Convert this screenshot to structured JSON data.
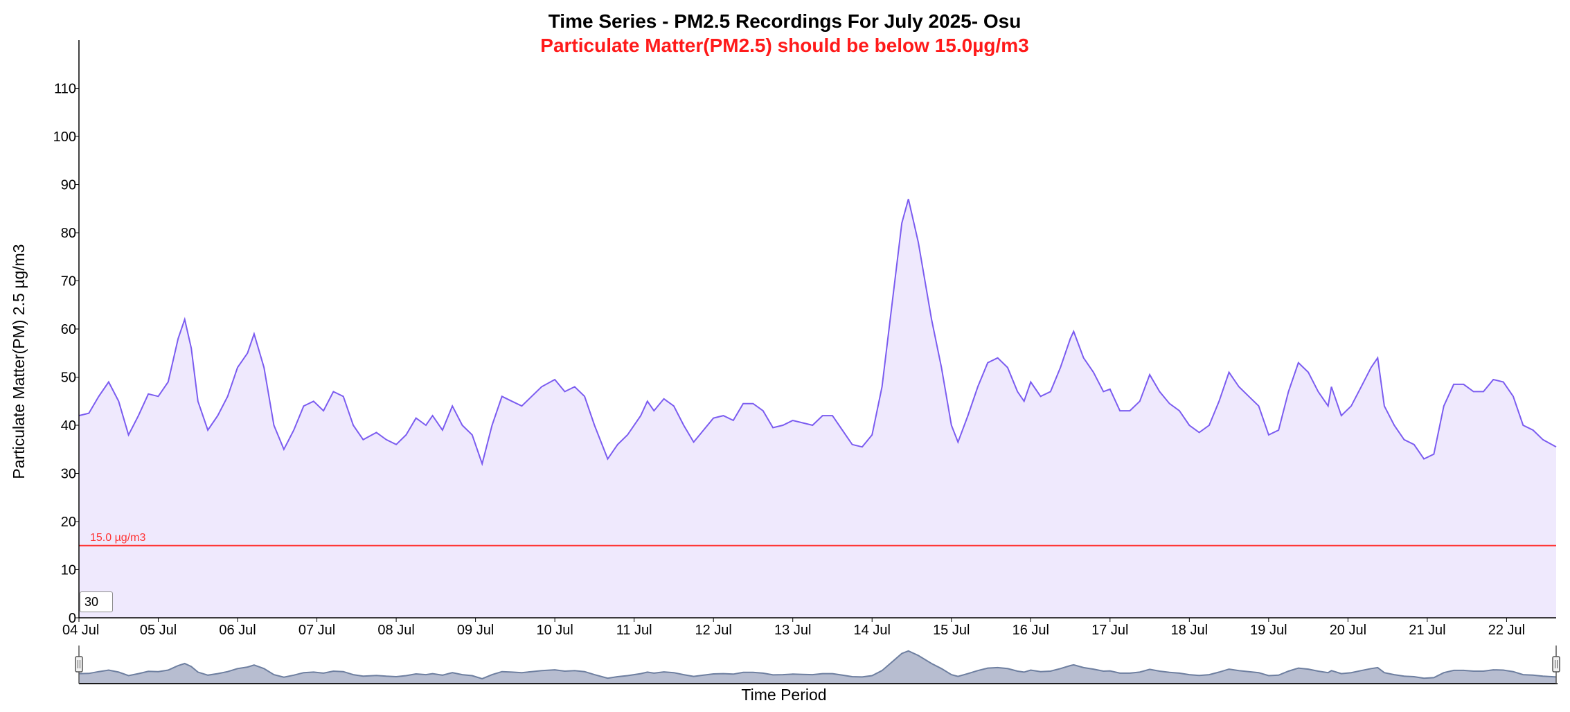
{
  "chart_data": {
    "type": "area",
    "title": "Time Series - PM2.5 Recordings For July 2025- Osu",
    "subtitle": "Particulate Matter(PM2.5) should be below 15.0µg/m3",
    "xlabel": "Time Period",
    "ylabel": "Particulate Matter(PM) 2.5 µg/m3",
    "ylim": [
      0,
      120
    ],
    "yticks": [
      0,
      10,
      20,
      30,
      40,
      50,
      60,
      70,
      80,
      90,
      100,
      110
    ],
    "xlim": [
      "2025-07-04T00:00",
      "2025-07-22T15:00"
    ],
    "xticks": [
      "04 Jul",
      "05 Jul",
      "06 Jul",
      "07 Jul",
      "08 Jul",
      "09 Jul",
      "10 Jul",
      "11 Jul",
      "12 Jul",
      "13 Jul",
      "14 Jul",
      "15 Jul",
      "16 Jul",
      "17 Jul",
      "18 Jul",
      "19 Jul",
      "20 Jul",
      "21 Jul",
      "22 Jul"
    ],
    "threshold": {
      "value": 15.0,
      "label": "15.0 µg/m3",
      "color": "#ff3333"
    },
    "line_color": "#7b5cf0",
    "fill_color": "#efe9fd",
    "grid": false,
    "rolling_period": "30",
    "series": [
      {
        "points": [
          [
            "2025-07-04T00:00",
            42
          ],
          [
            "2025-07-04T03:00",
            42.5
          ],
          [
            "2025-07-04T06:00",
            46
          ],
          [
            "2025-07-04T09:00",
            49
          ],
          [
            "2025-07-04T12:00",
            45
          ],
          [
            "2025-07-04T15:00",
            38
          ],
          [
            "2025-07-04T18:00",
            42
          ],
          [
            "2025-07-04T21:00",
            46.5
          ],
          [
            "2025-07-05T00:00",
            46
          ],
          [
            "2025-07-05T03:00",
            49
          ],
          [
            "2025-07-05T06:00",
            58
          ],
          [
            "2025-07-05T08:00",
            62
          ],
          [
            "2025-07-05T10:00",
            56
          ],
          [
            "2025-07-05T12:00",
            45
          ],
          [
            "2025-07-05T15:00",
            39
          ],
          [
            "2025-07-05T18:00",
            42
          ],
          [
            "2025-07-05T21:00",
            46
          ],
          [
            "2025-07-06T00:00",
            52
          ],
          [
            "2025-07-06T03:00",
            55
          ],
          [
            "2025-07-06T05:00",
            59
          ],
          [
            "2025-07-06T08:00",
            52
          ],
          [
            "2025-07-06T11:00",
            40
          ],
          [
            "2025-07-06T14:00",
            35
          ],
          [
            "2025-07-06T17:00",
            39
          ],
          [
            "2025-07-06T20:00",
            44
          ],
          [
            "2025-07-06T23:00",
            45
          ],
          [
            "2025-07-07T02:00",
            43
          ],
          [
            "2025-07-07T05:00",
            47
          ],
          [
            "2025-07-07T08:00",
            46
          ],
          [
            "2025-07-07T11:00",
            40
          ],
          [
            "2025-07-07T14:00",
            37
          ],
          [
            "2025-07-07T18:00",
            38.5
          ],
          [
            "2025-07-07T21:00",
            37
          ],
          [
            "2025-07-08T00:00",
            36
          ],
          [
            "2025-07-08T03:00",
            38
          ],
          [
            "2025-07-08T06:00",
            41.5
          ],
          [
            "2025-07-08T09:00",
            40
          ],
          [
            "2025-07-08T11:00",
            42
          ],
          [
            "2025-07-08T14:00",
            39
          ],
          [
            "2025-07-08T17:00",
            44
          ],
          [
            "2025-07-08T20:00",
            40
          ],
          [
            "2025-07-08T23:00",
            38
          ],
          [
            "2025-07-09T02:00",
            32
          ],
          [
            "2025-07-09T05:00",
            40
          ],
          [
            "2025-07-09T08:00",
            46
          ],
          [
            "2025-07-09T11:00",
            45
          ],
          [
            "2025-07-09T14:00",
            44
          ],
          [
            "2025-07-09T17:00",
            46
          ],
          [
            "2025-07-09T20:00",
            48
          ],
          [
            "2025-07-10T00:00",
            49.5
          ],
          [
            "2025-07-10T03:00",
            47
          ],
          [
            "2025-07-10T06:00",
            48
          ],
          [
            "2025-07-10T09:00",
            46
          ],
          [
            "2025-07-10T12:00",
            40
          ],
          [
            "2025-07-10T16:00",
            33
          ],
          [
            "2025-07-10T19:00",
            36
          ],
          [
            "2025-07-10T22:00",
            38
          ],
          [
            "2025-07-11T02:00",
            42
          ],
          [
            "2025-07-11T04:00",
            45
          ],
          [
            "2025-07-11T06:00",
            43
          ],
          [
            "2025-07-11T09:00",
            45.5
          ],
          [
            "2025-07-11T12:00",
            44
          ],
          [
            "2025-07-11T15:00",
            40
          ],
          [
            "2025-07-11T18:00",
            36.5
          ],
          [
            "2025-07-11T21:00",
            39
          ],
          [
            "2025-07-12T00:00",
            41.5
          ],
          [
            "2025-07-12T03:00",
            42
          ],
          [
            "2025-07-12T06:00",
            41
          ],
          [
            "2025-07-12T09:00",
            44.5
          ],
          [
            "2025-07-12T12:00",
            44.5
          ],
          [
            "2025-07-12T15:00",
            43
          ],
          [
            "2025-07-12T18:00",
            39.5
          ],
          [
            "2025-07-12T21:00",
            40
          ],
          [
            "2025-07-13T00:00",
            41
          ],
          [
            "2025-07-13T03:00",
            40.5
          ],
          [
            "2025-07-13T06:00",
            40
          ],
          [
            "2025-07-13T09:00",
            42
          ],
          [
            "2025-07-13T12:00",
            42
          ],
          [
            "2025-07-13T15:00",
            39
          ],
          [
            "2025-07-13T18:00",
            36
          ],
          [
            "2025-07-13T21:00",
            35.5
          ],
          [
            "2025-07-14T00:00",
            38
          ],
          [
            "2025-07-14T03:00",
            48
          ],
          [
            "2025-07-14T06:00",
            65
          ],
          [
            "2025-07-14T09:00",
            82
          ],
          [
            "2025-07-14T11:00",
            87
          ],
          [
            "2025-07-14T14:00",
            78
          ],
          [
            "2025-07-14T18:00",
            62
          ],
          [
            "2025-07-14T21:00",
            52
          ],
          [
            "2025-07-15T00:00",
            40
          ],
          [
            "2025-07-15T02:00",
            36.5
          ],
          [
            "2025-07-15T05:00",
            42
          ],
          [
            "2025-07-15T08:00",
            48
          ],
          [
            "2025-07-15T11:00",
            53
          ],
          [
            "2025-07-15T14:00",
            54
          ],
          [
            "2025-07-15T17:00",
            52
          ],
          [
            "2025-07-15T20:00",
            47
          ],
          [
            "2025-07-15T22:00",
            45
          ],
          [
            "2025-07-16T00:00",
            49
          ],
          [
            "2025-07-16T03:00",
            46
          ],
          [
            "2025-07-16T06:00",
            47
          ],
          [
            "2025-07-16T09:00",
            52
          ],
          [
            "2025-07-16T12:00",
            58
          ],
          [
            "2025-07-16T13:00",
            59.5
          ],
          [
            "2025-07-16T16:00",
            54
          ],
          [
            "2025-07-16T19:00",
            51
          ],
          [
            "2025-07-16T22:00",
            47
          ],
          [
            "2025-07-17T00:00",
            47.5
          ],
          [
            "2025-07-17T03:00",
            43
          ],
          [
            "2025-07-17T06:00",
            43
          ],
          [
            "2025-07-17T09:00",
            45
          ],
          [
            "2025-07-17T12:00",
            50.5
          ],
          [
            "2025-07-17T15:00",
            47
          ],
          [
            "2025-07-17T18:00",
            44.5
          ],
          [
            "2025-07-17T21:00",
            43
          ],
          [
            "2025-07-18T00:00",
            40
          ],
          [
            "2025-07-18T03:00",
            38.5
          ],
          [
            "2025-07-18T06:00",
            40
          ],
          [
            "2025-07-18T09:00",
            45
          ],
          [
            "2025-07-18T12:00",
            51
          ],
          [
            "2025-07-18T15:00",
            48
          ],
          [
            "2025-07-18T18:00",
            46
          ],
          [
            "2025-07-18T21:00",
            44
          ],
          [
            "2025-07-19T00:00",
            38
          ],
          [
            "2025-07-19T03:00",
            39
          ],
          [
            "2025-07-19T06:00",
            47
          ],
          [
            "2025-07-19T09:00",
            53
          ],
          [
            "2025-07-19T12:00",
            51
          ],
          [
            "2025-07-19T15:00",
            47
          ],
          [
            "2025-07-19T18:00",
            44
          ],
          [
            "2025-07-19T19:00",
            48
          ],
          [
            "2025-07-19T22:00",
            42
          ],
          [
            "2025-07-20T01:00",
            44
          ],
          [
            "2025-07-20T04:00",
            48
          ],
          [
            "2025-07-20T07:00",
            52
          ],
          [
            "2025-07-20T09:00",
            54
          ],
          [
            "2025-07-20T11:00",
            44
          ],
          [
            "2025-07-20T14:00",
            40
          ],
          [
            "2025-07-20T17:00",
            37
          ],
          [
            "2025-07-20T20:00",
            36
          ],
          [
            "2025-07-20T23:00",
            33
          ],
          [
            "2025-07-21T02:00",
            34
          ],
          [
            "2025-07-21T05:00",
            44
          ],
          [
            "2025-07-21T08:00",
            48.5
          ],
          [
            "2025-07-21T11:00",
            48.5
          ],
          [
            "2025-07-21T14:00",
            47
          ],
          [
            "2025-07-21T17:00",
            47
          ],
          [
            "2025-07-21T20:00",
            49.5
          ],
          [
            "2025-07-21T23:00",
            49
          ],
          [
            "2025-07-22T02:00",
            46
          ],
          [
            "2025-07-22T05:00",
            40
          ],
          [
            "2025-07-22T08:00",
            39
          ],
          [
            "2025-07-22T11:00",
            37
          ],
          [
            "2025-07-22T15:00",
            35.5
          ]
        ]
      }
    ]
  }
}
